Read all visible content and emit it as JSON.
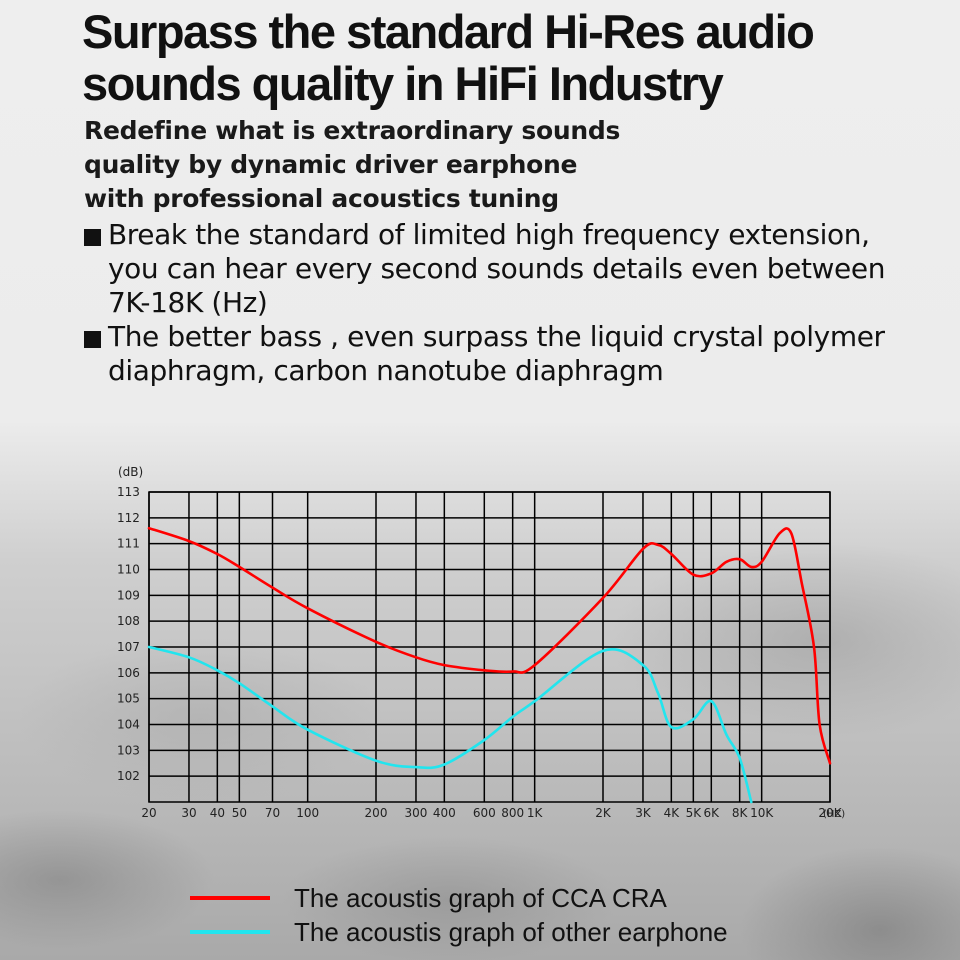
{
  "header": {
    "title_line1": "Surpass the standard Hi-Res audio",
    "title_line2": "sounds quality in HiFi Industry",
    "subtitle_line1": "Redefine what is extraordinary sounds",
    "subtitle_line2": "quality by dynamic driver earphone",
    "subtitle_line3": "with professional acoustics tuning"
  },
  "bullets": [
    {
      "icon": "square-bullet-icon",
      "lines": [
        "Break the standard of limited high frequency extension,",
        "you can hear every second sounds details even between",
        "7K-18K (Hz)"
      ]
    },
    {
      "icon": "square-bullet-icon",
      "lines": [
        "The better bass , even surpass the liquid crystal polymer",
        "diaphragm, carbon nanotube diaphragm"
      ]
    }
  ],
  "legend": [
    {
      "label": "The acoustis graph of  CCA CRA",
      "color": "#ff0000"
    },
    {
      "label": "The acoustis graph of other earphone",
      "color": "#22e5ee"
    }
  ],
  "chart_data": {
    "type": "line",
    "title": "",
    "xlabel": "(HZ)",
    "ylabel": "(dB)",
    "x_scale": "log",
    "xlim": [
      20,
      20000
    ],
    "ylim": [
      101,
      113
    ],
    "grid": true,
    "legend_position": "bottom",
    "x_ticks": [
      "20",
      "30",
      "40",
      "50",
      "70",
      "100",
      "200",
      "300",
      "400",
      "600",
      "800",
      "1K",
      "2K",
      "3K",
      "4K",
      "5K",
      "6K",
      "8K",
      "10K",
      "20K"
    ],
    "y_ticks": [
      "113",
      "112",
      "111",
      "110",
      "109",
      "108",
      "107",
      "106",
      "105",
      "104",
      "103",
      "102"
    ],
    "x": [
      20,
      30,
      40,
      50,
      70,
      100,
      200,
      300,
      400,
      600,
      800,
      1000,
      2000,
      3000,
      3500,
      4000,
      5000,
      6000,
      7000,
      8000,
      9000,
      10000,
      12000,
      13500,
      15000,
      17000,
      18000,
      20000
    ],
    "series": [
      {
        "name": "The acoustis graph of  CCA CRA",
        "color": "#ff0000",
        "values": [
          111.6,
          111.1,
          110.6,
          110.1,
          109.3,
          108.5,
          107.2,
          106.6,
          106.3,
          106.1,
          106.05,
          106.3,
          108.9,
          110.8,
          110.95,
          110.6,
          109.8,
          109.85,
          110.3,
          110.4,
          110.1,
          110.3,
          111.4,
          111.4,
          109.5,
          107.0,
          104.0,
          102.5
        ]
      },
      {
        "name": "The acoustis graph of other earphone",
        "color": "#22e5ee",
        "values": [
          107.0,
          106.6,
          106.1,
          105.6,
          104.7,
          103.8,
          102.6,
          102.35,
          102.45,
          103.4,
          104.3,
          104.9,
          106.85,
          106.3,
          105.2,
          103.9,
          104.2,
          104.9,
          103.6,
          102.7,
          101.0,
          null,
          null,
          null,
          null,
          null,
          null,
          null
        ]
      }
    ]
  }
}
